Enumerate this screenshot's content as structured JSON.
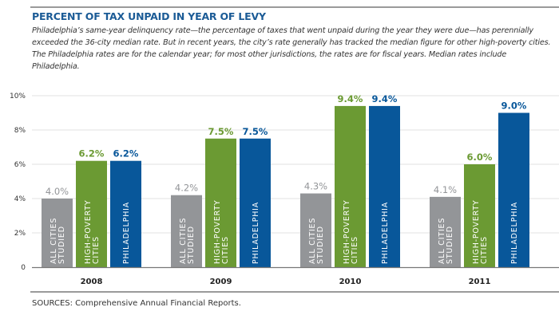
{
  "chart_data": {
    "type": "bar",
    "title": "PERCENT OF TAX UNPAID IN YEAR OF LEVY",
    "subtitle": "Philadelphia’s same-year delinquency rate—the percentage of taxes that went unpaid during the year they were due—has perennially exceeded the 36-city median rate. But in recent years, the city’s rate generally has tracked the median figure for other high-poverty cities. The Philadelphia rates are for the calendar year; for most other jurisdictions, the rates are for fiscal years. Median rates include Philadelphia.",
    "categories": [
      "2008",
      "2009",
      "2010",
      "2011"
    ],
    "series": [
      {
        "name": "ALL CITIES STUDIED",
        "label_lines": [
          "ALL CITIES",
          "STUDIED"
        ],
        "values": [
          4.0,
          4.2,
          4.3,
          4.1
        ],
        "data_labels": [
          "4.0%",
          "4.2%",
          "4.3%",
          "4.1%"
        ],
        "color": "#939598",
        "label_color": "#939598"
      },
      {
        "name": "HIGH-POVERTY CITIES",
        "label_lines": [
          "HIGH-POVERTY",
          "CITIES"
        ],
        "values": [
          6.2,
          7.5,
          9.4,
          6.0
        ],
        "data_labels": [
          "6.2%",
          "7.5%",
          "9.4%",
          "6.0%"
        ],
        "color": "#6b9a33",
        "label_color": "#6b9a33"
      },
      {
        "name": "PHILADELPHIA",
        "label_lines": [
          "PHILADELPHIA"
        ],
        "values": [
          6.2,
          7.5,
          9.4,
          9.0
        ],
        "data_labels": [
          "6.2%",
          "7.5%",
          "9.4%",
          "9.0%"
        ],
        "color": "#08579a",
        "label_color": "#08579a"
      }
    ],
    "yticks": [
      "0",
      "2%",
      "4%",
      "6%",
      "8%",
      "10%"
    ],
    "ylim": [
      0,
      10
    ],
    "grid": true,
    "xlabel": "",
    "ylabel": ""
  },
  "source": "SOURCES: Comprehensive Annual Financial Reports."
}
